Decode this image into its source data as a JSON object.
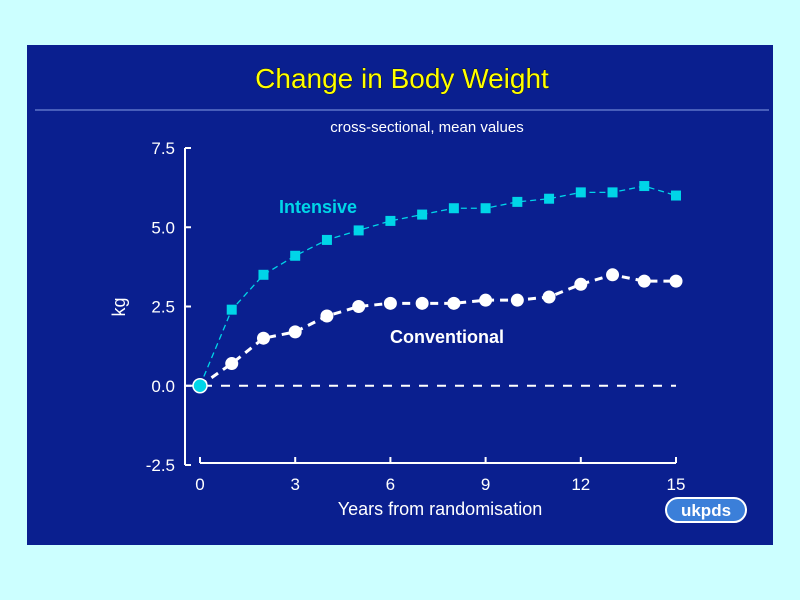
{
  "chart_data": {
    "type": "line",
    "title": "Change in Body Weight",
    "subtitle": "cross-sectional, mean values",
    "xlabel": "Years from randomisation",
    "ylabel": "kg",
    "xlim": [
      0,
      15
    ],
    "ylim": [
      -2.5,
      7.5
    ],
    "xticks": [
      "0",
      "3",
      "6",
      "9",
      "12",
      "15"
    ],
    "yticks": [
      "-2.5",
      "0.0",
      "2.5",
      "5.0",
      "7.5"
    ],
    "x": [
      0,
      1,
      2,
      3,
      4,
      5,
      6,
      7,
      8,
      9,
      10,
      11,
      12,
      13,
      14,
      15
    ],
    "series": [
      {
        "name": "Intensive",
        "marker": "square",
        "color": "#00d5e8",
        "values": [
          0.0,
          2.4,
          3.5,
          4.1,
          4.6,
          4.9,
          5.2,
          5.4,
          5.6,
          5.6,
          5.8,
          5.9,
          6.1,
          6.1,
          6.3,
          6.0
        ]
      },
      {
        "name": "Conventional",
        "marker": "circle",
        "color": "#ffffff",
        "values": [
          0.0,
          0.7,
          1.5,
          1.7,
          2.2,
          2.5,
          2.6,
          2.6,
          2.6,
          2.7,
          2.7,
          2.8,
          3.2,
          3.5,
          3.3,
          3.3
        ]
      }
    ],
    "reference_line": {
      "y": 0,
      "style": "dashed"
    }
  },
  "logo": "ukpds",
  "colors": {
    "page_background": "#ccffff",
    "slide_background": "#0a1f8f",
    "title": "#ffff00",
    "axis": "#ffffff",
    "intensive": "#00d5e8",
    "conventional": "#ffffff",
    "logo_accent": "#3b7fd9"
  }
}
